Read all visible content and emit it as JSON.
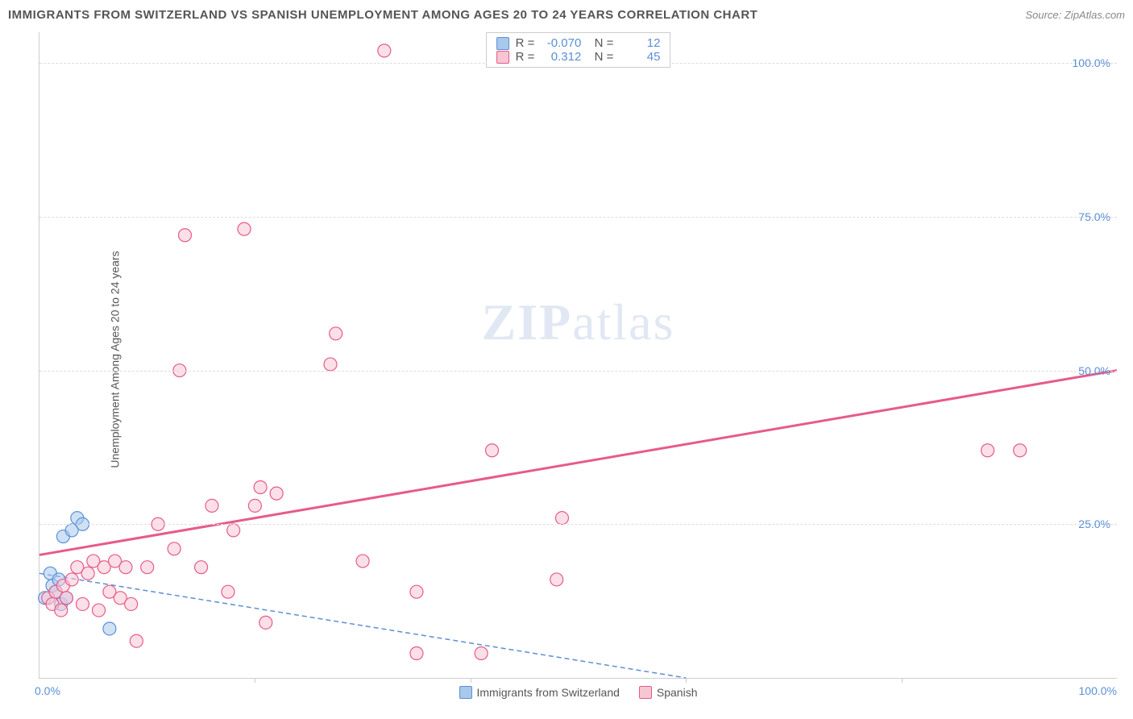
{
  "title": "IMMIGRANTS FROM SWITZERLAND VS SPANISH UNEMPLOYMENT AMONG AGES 20 TO 24 YEARS CORRELATION CHART",
  "source": "Source: ZipAtlas.com",
  "watermark_a": "ZIP",
  "watermark_b": "atlas",
  "ylabel": "Unemployment Among Ages 20 to 24 years",
  "chart": {
    "type": "scatter",
    "xlim": [
      0,
      100
    ],
    "ylim": [
      0,
      105
    ],
    "y_ticks": [
      25,
      50,
      75,
      100
    ],
    "y_tick_labels": [
      "25.0%",
      "50.0%",
      "75.0%",
      "100.0%"
    ],
    "x_tick_positions": [
      20,
      40,
      60,
      80
    ],
    "x_min_label": "0.0%",
    "x_max_label": "100.0%",
    "background_color": "#ffffff",
    "grid_color": "#dddddd",
    "series": [
      {
        "name": "Immigrants from Switzerland",
        "fill": "#a8c8ec",
        "stroke": "#5b8fd6",
        "marker_radius": 8,
        "R": "-0.070",
        "N": "12",
        "trend": {
          "x1": 0,
          "y1": 17,
          "x2": 60,
          "y2": 0,
          "style": "dashed",
          "color": "#5b8fd6",
          "width": 1.5
        },
        "points": [
          [
            0.5,
            13
          ],
          [
            1.0,
            17
          ],
          [
            1.2,
            15
          ],
          [
            1.5,
            14
          ],
          [
            1.8,
            16
          ],
          [
            2.0,
            12
          ],
          [
            2.2,
            23
          ],
          [
            2.5,
            13
          ],
          [
            3.0,
            24
          ],
          [
            3.5,
            26
          ],
          [
            4.0,
            25
          ],
          [
            6.5,
            8
          ]
        ]
      },
      {
        "name": "Spanish",
        "fill": "#f7c6d3",
        "stroke": "#e75a8a",
        "marker_radius": 8,
        "R": "0.312",
        "N": "45",
        "trend": {
          "x1": 0,
          "y1": 20,
          "x2": 100,
          "y2": 50,
          "style": "solid",
          "color": "#e75a8a",
          "width": 3
        },
        "points": [
          [
            0.8,
            13
          ],
          [
            1.2,
            12
          ],
          [
            1.5,
            14
          ],
          [
            2.0,
            11
          ],
          [
            2.2,
            15
          ],
          [
            2.5,
            13
          ],
          [
            3.0,
            16
          ],
          [
            3.5,
            18
          ],
          [
            4.0,
            12
          ],
          [
            4.5,
            17
          ],
          [
            5.0,
            19
          ],
          [
            5.5,
            11
          ],
          [
            6.0,
            18
          ],
          [
            6.5,
            14
          ],
          [
            7.0,
            19
          ],
          [
            7.5,
            13
          ],
          [
            8.0,
            18
          ],
          [
            8.5,
            12
          ],
          [
            9.0,
            6
          ],
          [
            10.0,
            18
          ],
          [
            11.0,
            25
          ],
          [
            12.5,
            21
          ],
          [
            13.0,
            50
          ],
          [
            13.5,
            72
          ],
          [
            15.0,
            18
          ],
          [
            16.0,
            28
          ],
          [
            17.5,
            14
          ],
          [
            18.0,
            24
          ],
          [
            19.0,
            73
          ],
          [
            20.0,
            28
          ],
          [
            20.5,
            31
          ],
          [
            21.0,
            9
          ],
          [
            22.0,
            30
          ],
          [
            27.0,
            51
          ],
          [
            27.5,
            56
          ],
          [
            30.0,
            19
          ],
          [
            32.0,
            102
          ],
          [
            35.0,
            4
          ],
          [
            35.0,
            14
          ],
          [
            41.0,
            4
          ],
          [
            42.0,
            37
          ],
          [
            48.0,
            16
          ],
          [
            48.5,
            26
          ],
          [
            88.0,
            37
          ],
          [
            91.0,
            37
          ]
        ]
      }
    ]
  },
  "legend": {
    "items": [
      {
        "label": "Immigrants from Switzerland",
        "fill": "#a8c8ec",
        "stroke": "#5b8fd6"
      },
      {
        "label": "Spanish",
        "fill": "#f7c6d3",
        "stroke": "#e75a8a"
      }
    ]
  }
}
